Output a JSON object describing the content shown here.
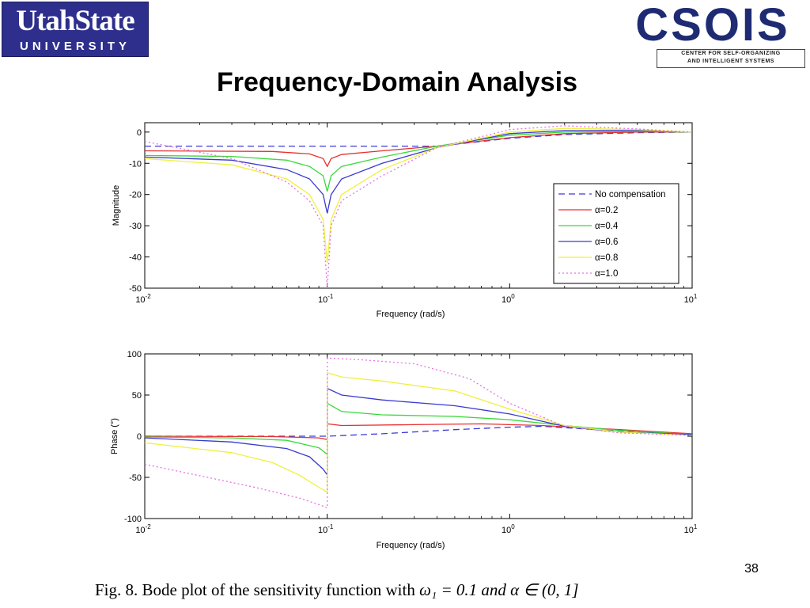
{
  "logos": {
    "usu_line1": "UtahState",
    "usu_line2": "UNIVERSITY",
    "csois_word": "CSOIS",
    "csois_sub1": "CENTER FOR SELF-ORGANIZING",
    "csois_sub2": "AND INTELLIGENT SYSTEMS"
  },
  "slide": {
    "title": "Frequency-Domain Analysis",
    "page_number": "38",
    "caption_prefix": "Fig. 8.   Bode plot of the sensitivity function with ",
    "caption_math": "ω₁ = 0.1 and α ∈ (0, 1]"
  },
  "chart_data": [
    {
      "type": "line",
      "title": "",
      "xlabel": "Frequency (rad/s)",
      "ylabel": "Magnitude",
      "xscale": "log",
      "xlim": [
        0.01,
        10
      ],
      "ylim": [
        -50,
        3
      ],
      "yticks": [
        0,
        -10,
        -20,
        -30,
        -40,
        -50
      ],
      "xticks": [
        0.01,
        0.1,
        1,
        10
      ],
      "xtick_labels": [
        {
          "base": "10",
          "exp": "-2"
        },
        {
          "base": "10",
          "exp": "-1"
        },
        {
          "base": "10",
          "exp": "0"
        },
        {
          "base": "10",
          "exp": "1"
        }
      ],
      "legend_position": "right",
      "series": [
        {
          "name": "No compensation",
          "color": "#3b3bdc",
          "dash": "8,5",
          "x": [
            0.01,
            0.1,
            0.2,
            0.4,
            0.7,
            1.0,
            2.0,
            5.0,
            10
          ],
          "y": [
            -4.5,
            -4.5,
            -4.5,
            -4.5,
            -3.0,
            -2.0,
            -0.8,
            -0.2,
            0
          ]
        },
        {
          "name": "α=0.2",
          "color": "#e83030",
          "dash": "",
          "x": [
            0.01,
            0.05,
            0.08,
            0.095,
            0.1,
            0.105,
            0.12,
            0.2,
            0.4,
            1.0,
            2.0,
            5.0,
            10
          ],
          "y": [
            -6.0,
            -6.2,
            -7.0,
            -8.5,
            -11.0,
            -8.5,
            -7.2,
            -6.0,
            -4.5,
            -1.8,
            -0.5,
            0,
            0
          ]
        },
        {
          "name": "α=0.4",
          "color": "#3ad83a",
          "dash": "",
          "x": [
            0.01,
            0.03,
            0.06,
            0.08,
            0.095,
            0.1,
            0.105,
            0.12,
            0.2,
            0.4,
            1.0,
            2.0,
            5.0,
            10
          ],
          "y": [
            -7.5,
            -7.8,
            -9.0,
            -11.0,
            -14.0,
            -19.0,
            -14.0,
            -11.0,
            -8.0,
            -4.5,
            -1.0,
            0,
            0.2,
            0
          ]
        },
        {
          "name": "α=0.6",
          "color": "#3a3ad0",
          "dash": "",
          "x": [
            0.01,
            0.03,
            0.06,
            0.08,
            0.095,
            0.1,
            0.105,
            0.12,
            0.2,
            0.4,
            1.0,
            2.0,
            5.0,
            10
          ],
          "y": [
            -8.0,
            -9.0,
            -12.0,
            -15.0,
            -20.0,
            -26.0,
            -20.0,
            -15.0,
            -10.0,
            -5.0,
            -0.5,
            0.5,
            0.5,
            0
          ]
        },
        {
          "name": "α=0.8",
          "color": "#f0f040",
          "dash": "",
          "x": [
            0.01,
            0.03,
            0.06,
            0.08,
            0.095,
            0.1,
            0.105,
            0.12,
            0.2,
            0.4,
            1.0,
            2.0,
            5.0,
            10
          ],
          "y": [
            -8.5,
            -10.5,
            -15.0,
            -20.0,
            -28.0,
            -42.0,
            -28.0,
            -20.0,
            -12.0,
            -5.0,
            0,
            1.2,
            0.8,
            0
          ]
        },
        {
          "name": "α=1.0",
          "color": "#e870e8",
          "dash": "2,3",
          "x": [
            0.01,
            0.03,
            0.06,
            0.08,
            0.095,
            0.1,
            0.105,
            0.12,
            0.2,
            0.4,
            1.0,
            2.0,
            5.0,
            10
          ],
          "y": [
            -3.0,
            -8.5,
            -16.0,
            -22.0,
            -30.0,
            -50.0,
            -30.0,
            -22.0,
            -14.0,
            -5.0,
            0.8,
            2.0,
            1.0,
            0
          ]
        }
      ]
    },
    {
      "type": "line",
      "title": "",
      "xlabel": "Frequency (rad/s)",
      "ylabel": "Phase (°)",
      "xscale": "log",
      "xlim": [
        0.01,
        10
      ],
      "ylim": [
        -100,
        100
      ],
      "yticks": [
        100,
        50,
        0,
        -50,
        -100
      ],
      "xticks": [
        0.01,
        0.1,
        1,
        10
      ],
      "xtick_labels": [
        {
          "base": "10",
          "exp": "-2"
        },
        {
          "base": "10",
          "exp": "-1"
        },
        {
          "base": "10",
          "exp": "0"
        },
        {
          "base": "10",
          "exp": "1"
        }
      ],
      "series": [
        {
          "name": "No compensation",
          "color": "#3b3bdc",
          "dash": "8,5",
          "x": [
            0.01,
            0.1,
            0.2,
            0.5,
            1.0,
            1.5,
            3.0,
            10
          ],
          "y": [
            0,
            0,
            3,
            8,
            11,
            12,
            8,
            2
          ]
        },
        {
          "name": "α=0.2",
          "color": "#e83030",
          "dash": "",
          "x": [
            0.01,
            0.05,
            0.09,
            0.1,
            0.1001,
            0.12,
            0.3,
            0.7,
            1.5,
            4.0,
            10
          ],
          "y": [
            0,
            -0.5,
            -2,
            -4,
            15,
            13,
            14,
            15,
            13,
            8,
            3
          ]
        },
        {
          "name": "α=0.4",
          "color": "#3ad83a",
          "dash": "",
          "x": [
            0.01,
            0.03,
            0.06,
            0.09,
            0.1,
            0.1001,
            0.12,
            0.2,
            0.5,
            1.0,
            2.0,
            4.0,
            10
          ],
          "y": [
            -1,
            -2,
            -5,
            -14,
            -22,
            40,
            30,
            26,
            24,
            20,
            13,
            7,
            2
          ]
        },
        {
          "name": "α=0.6",
          "color": "#3a3ad0",
          "dash": "",
          "x": [
            0.01,
            0.03,
            0.06,
            0.08,
            0.095,
            0.1,
            0.1001,
            0.12,
            0.2,
            0.5,
            1.0,
            2.0,
            4.0,
            10
          ],
          "y": [
            -2,
            -7,
            -15,
            -25,
            -40,
            -47,
            58,
            50,
            44,
            37,
            27,
            12,
            5,
            2
          ]
        },
        {
          "name": "α=0.8",
          "color": "#f0f040",
          "dash": "",
          "x": [
            0.01,
            0.03,
            0.05,
            0.07,
            0.09,
            0.1,
            0.1001,
            0.12,
            0.2,
            0.5,
            1.0,
            2.0,
            4.0,
            10
          ],
          "y": [
            -8,
            -20,
            -32,
            -47,
            -62,
            -68,
            77,
            72,
            67,
            55,
            33,
            13,
            5,
            1
          ]
        },
        {
          "name": "α=1.0",
          "color": "#e870e8",
          "dash": "2,3",
          "x": [
            0.01,
            0.02,
            0.04,
            0.07,
            0.09,
            0.1,
            0.1001,
            0.15,
            0.3,
            0.6,
            1.0,
            2.0,
            4.0,
            10
          ],
          "y": [
            -34,
            -48,
            -62,
            -75,
            -83,
            -87,
            95,
            93,
            88,
            70,
            40,
            12,
            4,
            1
          ]
        }
      ]
    }
  ]
}
